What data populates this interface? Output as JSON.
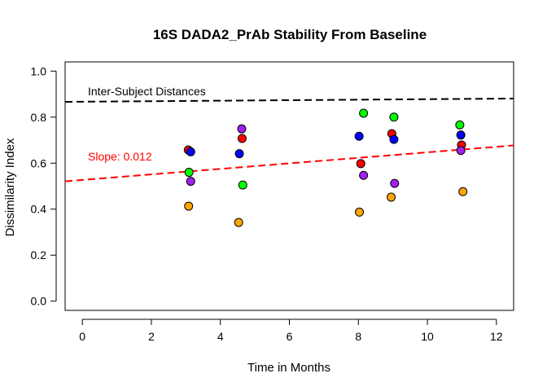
{
  "chart_data": {
    "type": "scatter",
    "title": "16S DADA2_PrAb Stability From Baseline",
    "xlabel": "Time in Months",
    "ylabel": "Dissimilarity Index",
    "xlim": [
      -0.5,
      12.5
    ],
    "ylim": [
      -0.04,
      1.04
    ],
    "xticks": [
      "0",
      "2",
      "4",
      "6",
      "8",
      "10",
      "12"
    ],
    "yticks": [
      "0.0",
      "0.2",
      "0.4",
      "0.6",
      "0.8",
      "1.0"
    ],
    "grid": false,
    "series": [
      {
        "color": "#FF0000",
        "x": [
          3.07,
          4.63,
          8.07,
          8.97,
          10.99
        ],
        "y": [
          0.657,
          0.707,
          0.598,
          0.728,
          0.679
        ]
      },
      {
        "color": "#0000FF",
        "x": [
          3.14,
          4.55,
          8.02,
          9.03,
          10.97
        ],
        "y": [
          0.649,
          0.641,
          0.717,
          0.703,
          0.722
        ]
      },
      {
        "color": "#00FF00",
        "x": [
          3.09,
          4.65,
          8.15,
          9.03,
          10.94
        ],
        "y": [
          0.56,
          0.505,
          0.817,
          0.8,
          0.766
        ]
      },
      {
        "color": "#A020F0",
        "x": [
          3.14,
          4.62,
          8.15,
          9.05,
          10.97
        ],
        "y": [
          0.521,
          0.749,
          0.547,
          0.512,
          0.655
        ]
      },
      {
        "color": "#FFA500",
        "x": [
          3.08,
          4.53,
          8.03,
          8.95,
          11.03
        ],
        "y": [
          0.413,
          0.342,
          0.387,
          0.452,
          0.476
        ]
      }
    ],
    "annotations": {
      "inter_subject": {
        "label": "Inter-Subject Distances",
        "color": "#000000",
        "line": {
          "intercept": 0.867,
          "slope": 0.0011
        }
      },
      "trend": {
        "label": "Slope: 0.012",
        "color": "#FF0000",
        "line": {
          "intercept": 0.527,
          "slope": 0.012
        }
      }
    }
  }
}
